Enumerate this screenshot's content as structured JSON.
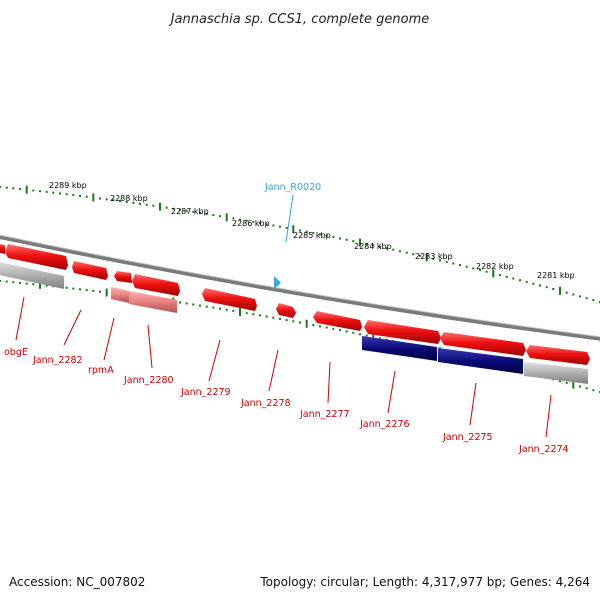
{
  "title": "Jannaschia sp. CCS1, complete genome",
  "footer": {
    "accession": "Accession: NC_007802",
    "summary": "Topology: circular; Length: 4,317,977 bp; Genes: 4,264"
  },
  "scale_labels": [
    "2289 kbp",
    "2288 kbp",
    "2287 kbp",
    "2286 kbp",
    "2285 kbp",
    "2284 kbp",
    "2283 kbp",
    "2282 kbp",
    "2281 kbp"
  ],
  "genes": [
    "obgE",
    "Jann_2282",
    "rpmA",
    "Jann_2280",
    "Jann_2279",
    "Jann_2278",
    "Jann_2277",
    "Jann_2276",
    "Jann_2275",
    "Jann_2274"
  ],
  "rna": [
    "Jann_R0020"
  ],
  "colors": {
    "gene": "#ee1111",
    "gene_light": "#e88888",
    "cds_blue": "#0a0a78",
    "pseudo_grey": "#b0b0b0",
    "ring": "#7a7a7a",
    "tick": "#1a7a1a",
    "label_red": "#cc0000",
    "label_rna": "#33aadd"
  }
}
